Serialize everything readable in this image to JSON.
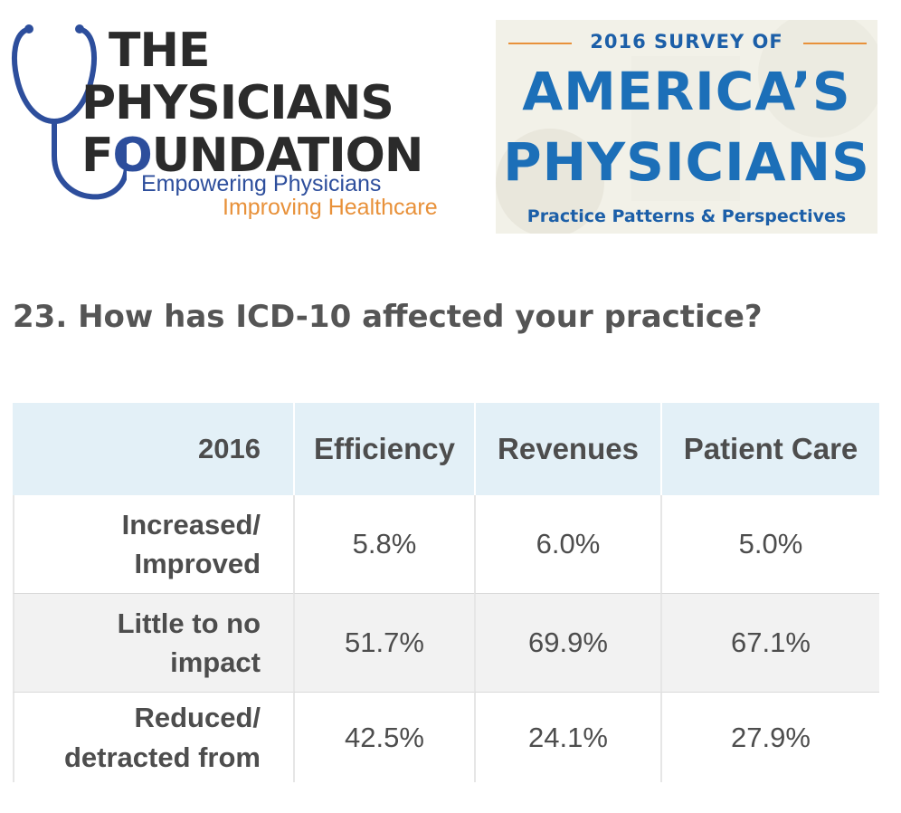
{
  "logo_left": {
    "line1": "THE",
    "line2": "PHYSICIANS",
    "line3_before": "F",
    "line3_dot": "O",
    "line3_after": "UNDATION",
    "tagline1": "Empowering Physicians",
    "tagline2": "Improving Healthcare",
    "colors": {
      "text": "#2b2b2b",
      "blue": "#2d4e9c",
      "orange": "#e8913a"
    }
  },
  "survey_badge": {
    "kicker": "2016 SURVEY OF",
    "line1": "AMERICA’S",
    "line2": "PHYSICIANS",
    "subtitle": "Practice Patterns & Perspectives",
    "colors": {
      "blue": "#1c6fb8",
      "rule": "#e8913a"
    }
  },
  "question": "23. How has ICD-10 affected your practice?",
  "table": {
    "corner_label": "2016",
    "columns": [
      "Efficiency",
      "Revenues",
      "Patient Care"
    ],
    "rows": [
      {
        "label_line1": "Increased/",
        "label_line2": "Improved",
        "values": [
          "5.8%",
          "6.0%",
          "5.0%"
        ]
      },
      {
        "label_line1": "Little to no",
        "label_line2": "impact",
        "values": [
          "51.7%",
          "69.9%",
          "67.1%"
        ]
      },
      {
        "label_line1": "Reduced/",
        "label_line2": "detracted from",
        "values": [
          "42.5%",
          "24.1%",
          "27.9%"
        ]
      }
    ],
    "colors": {
      "header_bg": "#e3f0f7",
      "row_shade": "#f2f2f2"
    }
  }
}
